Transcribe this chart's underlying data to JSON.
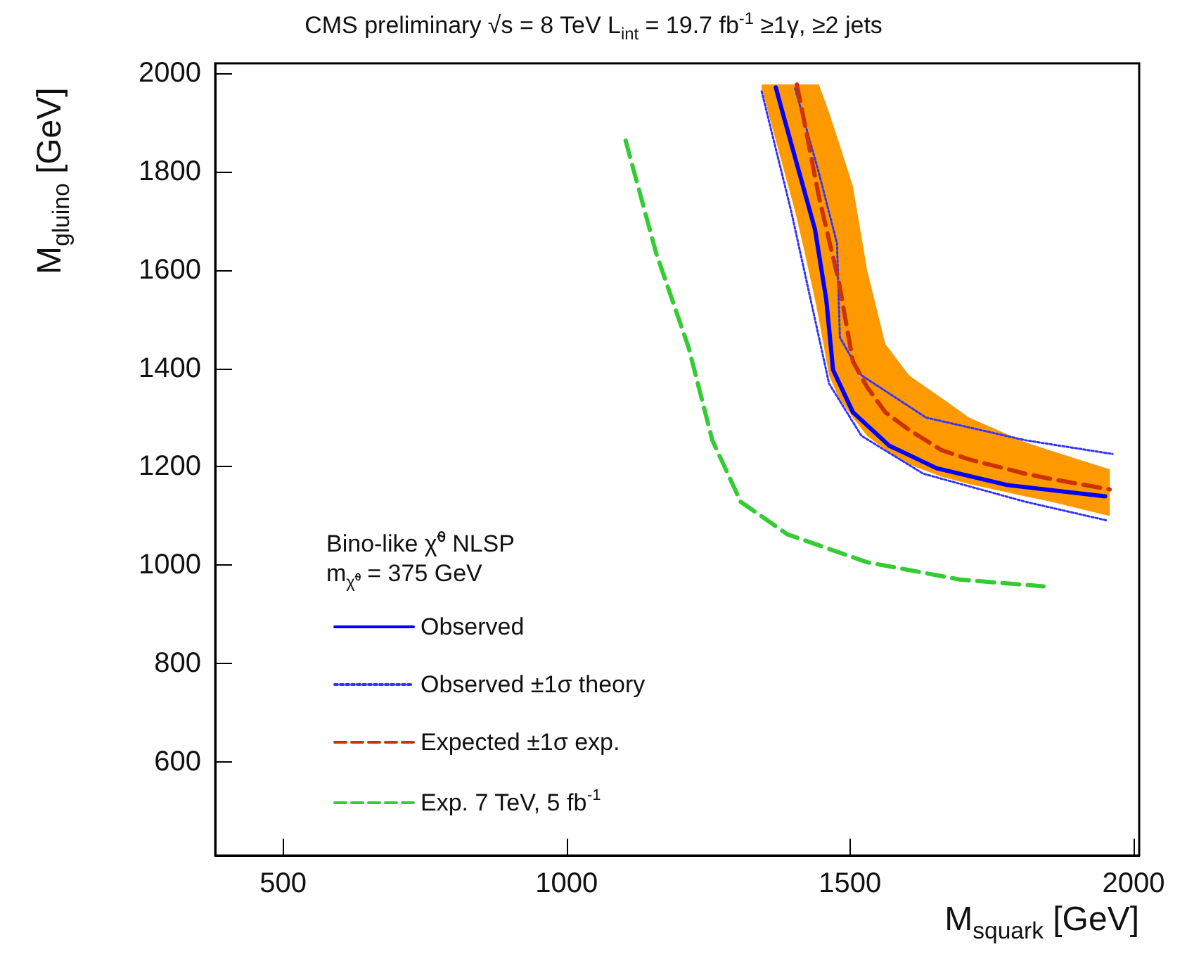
{
  "chart_data": {
    "type": "line",
    "title": "CMS preliminary  √s = 8 TeV     L$_{int}$ = 19.7 fb$^{-1}$ ≥1γ, ≥2 jets",
    "xlabel": "M$_{squark}$ [GeV]",
    "ylabel": "M$_{gluino}$ [GeV]",
    "legend_title": "Bino-like χ̃⁰ NLSP",
    "annotations": [
      "m$_{χ̃⁰}$ = 375 GeV"
    ],
    "xlim": [
      380,
      2010
    ],
    "xticks": [
      500,
      1000,
      1500,
      2000
    ],
    "ylim": [
      410,
      2020
    ],
    "yticks": [
      600,
      800,
      1000,
      1200,
      1400,
      1600,
      1800,
      2000
    ],
    "grid": false,
    "legend": "bottom left",
    "marker": "none",
    "series": [
      {
        "name": "Observed",
        "color": "#0000ff",
        "line_style": "solid",
        "x": [
          1369,
          1381,
          1438,
          1458,
          1470,
          1505,
          1569,
          1653,
          1777,
          1950
        ],
        "values": [
          1971,
          1920,
          1683,
          1540,
          1397,
          1311,
          1243,
          1197,
          1163,
          1140
        ]
      },
      {
        "name": "Observed ±1σ theory",
        "color": "#3333ff",
        "line_style": "dotted",
        "x": [
          1403,
          1445,
          1477,
          1482,
          1520,
          1634,
          1809,
          1963
        ],
        "values": [
          1969,
          1797,
          1654,
          1463,
          1386,
          1300,
          1254,
          1226
        ]
      },
      {
        "color": "#3333ff",
        "line_style": "dotted",
        "x": [
          1344,
          1396,
          1438,
          1463,
          1520,
          1629,
          1809,
          1953
        ],
        "values": [
          1963,
          1720,
          1500,
          1369,
          1263,
          1186,
          1129,
          1091
        ]
      },
      {
        "name": "Expected ±1σ exp.",
        "color": "#cc3300",
        "line_style": "dashed",
        "x": [
          1344,
          1396,
          1406,
          1421,
          1438,
          1445,
          1463,
          1480,
          1505,
          1530,
          1562,
          1604,
          1661,
          1710,
          1809,
          1851,
          1958
        ],
        "values": [
          null,
          null,
          1977,
          1891,
          1790,
          1749,
          1660,
          1577,
          1414,
          1362,
          1311,
          1275,
          1234,
          1215,
          1186,
          1176,
          1154
        ],
        "upper": [
          1977,
          1977,
          1977,
          1977,
          1977,
          1977,
          1920,
          1860,
          1770,
          1600,
          1450,
          1386,
          1340,
          1300,
          1250,
          1234,
          1195
        ],
        "lower": [
          1969,
          1749,
          1705,
          1630,
          1540,
          1500,
          1386,
          1340,
          1300,
          1263,
          1235,
          1205,
          1180,
          1165,
          1140,
          1130,
          1100
        ]
      },
      {
        "name": "Exp. 7 TeV, 5 fb$^{-1}$",
        "color": "#33cc33",
        "line_style": "dashed",
        "x": [
          1104,
          1158,
          1215,
          1257,
          1307,
          1389,
          1530,
          1693,
          1841
        ],
        "values": [
          1863,
          1634,
          1443,
          1254,
          1129,
          1063,
          1006,
          971,
          957
        ]
      }
    ]
  }
}
